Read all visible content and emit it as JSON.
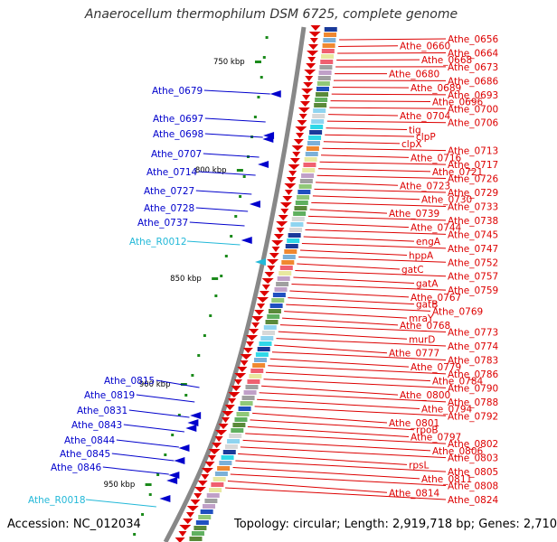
{
  "title": "Anaerocellum thermophilum DSM 6725, complete genome",
  "accession": "Accession: NC_012034",
  "topology": "Topology: circular; Length: 2,919,718 bp; Genes: 2,710",
  "colors": {
    "red": "#dd0000",
    "blue": "#0000cc",
    "cyan": "#22b8d8",
    "backbone": "#888888",
    "tick": "#1a8a1a"
  },
  "kbp_ticks": [
    "750 kbp",
    "800 kbp",
    "850 kbp",
    "900 kbp",
    "950 kbp"
  ],
  "right_labels": [
    "Athe_0656",
    "Athe_0660",
    "Athe_0664",
    "Athe_0668",
    "Athe_0673",
    "Athe_0680",
    "Athe_0686",
    "Athe_0689",
    "Athe_0693",
    "Athe_0696",
    "Athe_0700",
    "Athe_0704",
    "Athe_0706",
    "tig",
    "clpP",
    "clpX",
    "Athe_0713",
    "Athe_0716",
    "Athe_0717",
    "Athe_0721",
    "Athe_0726",
    "Athe_0723",
    "Athe_0729",
    "Athe_0730",
    "Athe_0733",
    "Athe_0739",
    "Athe_0738",
    "Athe_0744",
    "Athe_0745",
    "engA",
    "Athe_0747",
    "hppA",
    "Athe_0752",
    "gatC",
    "Athe_0757",
    "gatA",
    "Athe_0759",
    "Athe_0767",
    "gatB",
    "Athe_0769",
    "mraY",
    "Athe_0768",
    "Athe_0773",
    "murD",
    "Athe_0774",
    "Athe_0777",
    "Athe_0783",
    "Athe_0779",
    "Athe_0786",
    "Athe_0784",
    "Athe_0790",
    "Athe_0800",
    "Athe_0788",
    "Athe_0794",
    "Athe_0792",
    "Athe_0801",
    "rpoB",
    "Athe_0797",
    "Athe_0802",
    "Athe_0806",
    "Athe_0803",
    "rpsL",
    "Athe_0805",
    "Athe_0811",
    "Athe_0808",
    "Athe_0814",
    "Athe_0824"
  ],
  "left_labels": [
    "Athe_0679",
    "Athe_0697",
    "Athe_0698",
    "Athe_0707",
    "Athe_0714",
    "Athe_0727",
    "Athe_0728",
    "Athe_0737",
    "Athe_R0012",
    "Athe_0815",
    "Athe_0819",
    "Athe_0831",
    "Athe_0843",
    "Athe_0844",
    "Athe_0845",
    "Athe_0846",
    "Athe_R0018"
  ]
}
